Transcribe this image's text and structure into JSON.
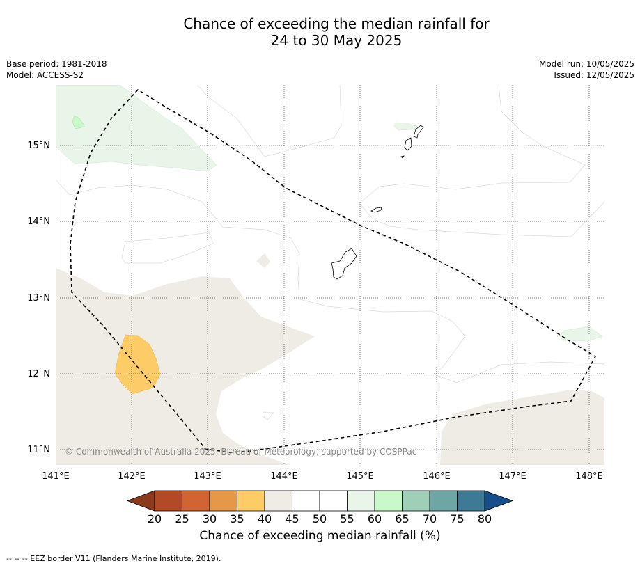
{
  "title_line1": "Chance of exceeding the median rainfall for",
  "title_line2": "24 to 30 May 2025",
  "base_period": "Base period: 1981-2018",
  "model": "Model: ACCESS-S2",
  "model_run": "Model run: 10/05/2025",
  "issued": "Issued: 12/05/2025",
  "copyright": "© Commonwealth of Australia 2025, Bureau of Meteorology, supported by COSPPac",
  "lon_ticks": [
    "141°E",
    "142°E",
    "143°E",
    "144°E",
    "145°E",
    "146°E",
    "147°E",
    "148°E"
  ],
  "lat_ticks": [
    "15°N",
    "14°N",
    "13°N",
    "12°N",
    "11°N"
  ],
  "colorbar": {
    "ticks": [
      "20",
      "25",
      "30",
      "35",
      "40",
      "45",
      "50",
      "55",
      "60",
      "65",
      "70",
      "75",
      "80"
    ],
    "colors": [
      "#8b3a1e",
      "#b24a26",
      "#d06432",
      "#e49848",
      "#fdcc66",
      "#efebe5",
      "#ffffff",
      "#ffffff",
      "#e9f5e9",
      "#caf9c9",
      "#9ecfb7",
      "#6ea5a5",
      "#3e7a96",
      "#154e88"
    ],
    "label": "Chance of exceeding median rainfall (%)"
  },
  "footnote": "--  --  -- EEZ border V11 (Flanders Marine Institute, 2019)."
}
